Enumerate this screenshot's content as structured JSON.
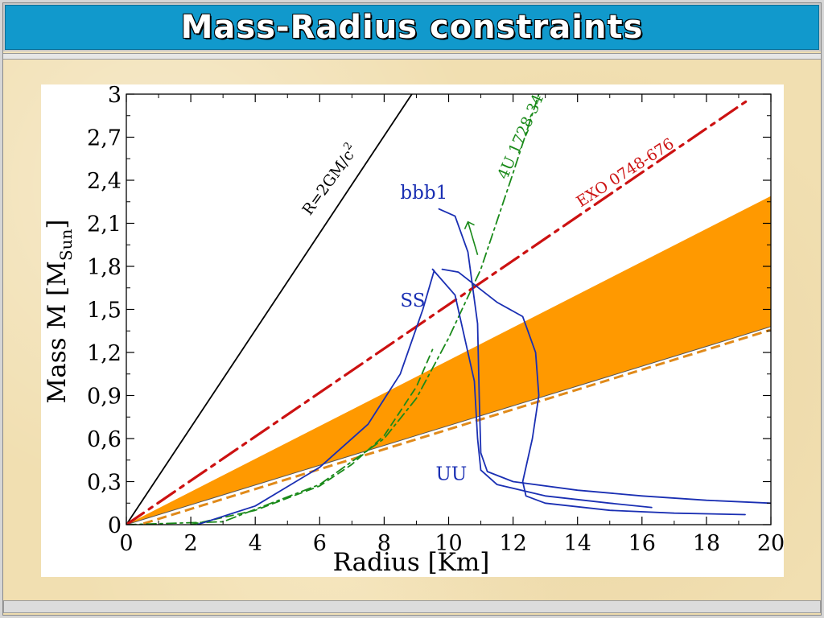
{
  "slide": {
    "title": "Mass-Radius constraints"
  },
  "chart_data": {
    "type": "line",
    "xlabel": "Radius  [Km]",
    "ylabel_main": "Mass  M  [M",
    "ylabel_sub": "Sun",
    "ylabel_close": "]",
    "xlim": [
      0,
      20
    ],
    "ylim": [
      0,
      3
    ],
    "x_ticks": [
      "0",
      "2",
      "4",
      "6",
      "8",
      "10",
      "12",
      "14",
      "16",
      "18",
      "20"
    ],
    "y_ticks": [
      "0",
      "0,3",
      "0,6",
      "0,9",
      "1,2",
      "1,5",
      "1,8",
      "2,1",
      "2,4",
      "2,7",
      "3"
    ],
    "grid": false,
    "colors": {
      "black": "#000000",
      "eos": "#1a2fb3",
      "green": "#1a8a1a",
      "red": "#cc1111",
      "band": "#ff9900",
      "band_dash": "#e08a1a"
    },
    "series": [
      {
        "name": "R=2GM/c",
        "label_sup": "2",
        "style": "solid",
        "color": "black",
        "x": [
          0,
          8.86
        ],
        "y": [
          0,
          3.0
        ]
      },
      {
        "name": "4U 1728-34",
        "style": "dashdot",
        "color": "green",
        "x": [
          0,
          3,
          6,
          8,
          9,
          10,
          11,
          12,
          12.8
        ],
        "y": [
          0,
          0.02,
          0.28,
          0.6,
          0.88,
          1.3,
          1.78,
          2.45,
          3.0
        ]
      },
      {
        "name": "",
        "style": "dashed",
        "color": "green",
        "x": [
          2,
          4,
          6,
          7,
          8,
          9,
          9.5
        ],
        "y": [
          0.0,
          0.1,
          0.27,
          0.42,
          0.62,
          0.96,
          1.22
        ]
      },
      {
        "name": "EXO 0748-676",
        "style": "dashdot_long",
        "color": "red",
        "x": [
          0,
          19.3
        ],
        "y": [
          0,
          2.96
        ]
      },
      {
        "name": "bbb1",
        "style": "solid",
        "color": "eos",
        "x": [
          9.7,
          10.2,
          10.6,
          10.9,
          10.95,
          11.0,
          11.2,
          12,
          14,
          16,
          18,
          20
        ],
        "y": [
          2.2,
          2.15,
          1.9,
          1.4,
          0.9,
          0.5,
          0.37,
          0.3,
          0.24,
          0.2,
          0.17,
          0.15
        ]
      },
      {
        "name": "SS",
        "style": "solid",
        "color": "eos",
        "x": [
          2.2,
          4,
          6,
          7.5,
          8.5,
          9.2,
          9.55,
          9.5,
          10.2,
          10.8,
          10.9,
          11.0,
          11.5,
          13,
          15,
          16.3
        ],
        "y": [
          0.0,
          0.13,
          0.4,
          0.7,
          1.05,
          1.5,
          1.77,
          1.78,
          1.6,
          1.0,
          0.6,
          0.38,
          0.28,
          0.2,
          0.15,
          0.12
        ]
      },
      {
        "name": "UU",
        "style": "solid",
        "color": "eos",
        "x": [
          9.8,
          10.3,
          11.5,
          12.3,
          12.7,
          12.8,
          12.6,
          12.3,
          12.4,
          13,
          15,
          17,
          19.2
        ],
        "y": [
          1.78,
          1.76,
          1.55,
          1.45,
          1.2,
          0.9,
          0.6,
          0.3,
          0.2,
          0.15,
          0.1,
          0.08,
          0.07
        ]
      }
    ],
    "band": {
      "color": "band",
      "upper": {
        "x": [
          0,
          20
        ],
        "y": [
          0,
          2.29
        ]
      },
      "lower": {
        "x": [
          0,
          20
        ],
        "y": [
          0,
          1.38
        ]
      }
    },
    "annotations": [
      {
        "text": "R=2GM/c",
        "sup": "2",
        "x": 5.7,
        "y": 2.15,
        "rotation": -54,
        "color": "black"
      },
      {
        "text": "4U 1728-34",
        "x": 11.8,
        "y": 2.4,
        "rotation": -66,
        "color": "green"
      },
      {
        "text": "EXO 0748-676",
        "x": 14.1,
        "y": 2.21,
        "rotation": -33,
        "color": "red"
      },
      {
        "text": "bbb1",
        "x": 8.5,
        "y": 2.27,
        "rotation": 0,
        "color": "eos"
      },
      {
        "text": "SS",
        "x": 8.5,
        "y": 1.52,
        "rotation": 0,
        "color": "eos"
      },
      {
        "text": "UU",
        "x": 9.6,
        "y": 0.31,
        "rotation": 0,
        "color": "eos"
      }
    ]
  }
}
